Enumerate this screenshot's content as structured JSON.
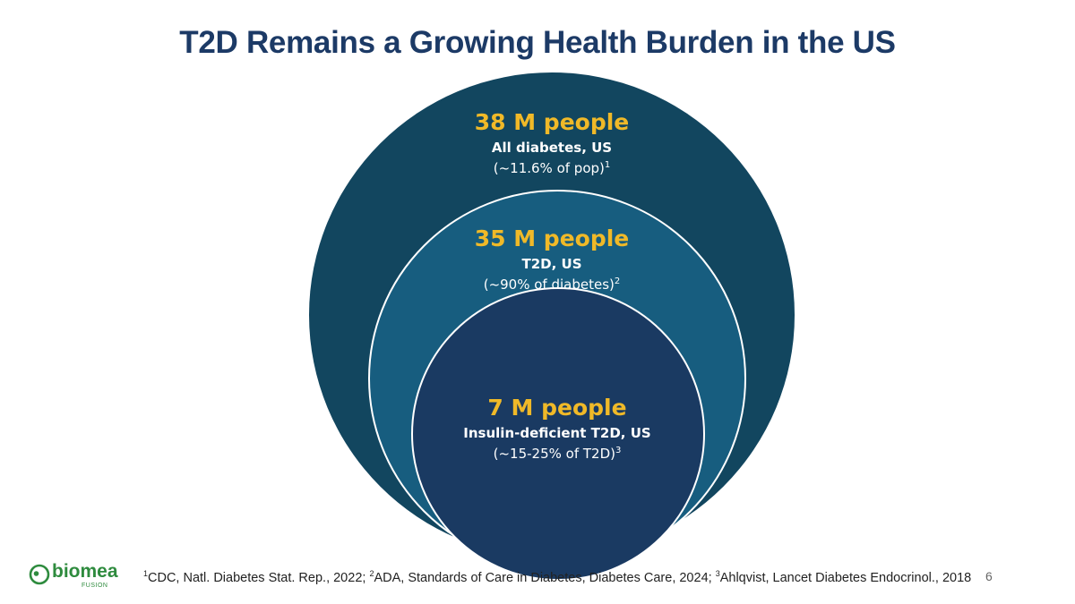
{
  "slide": {
    "title": "T2D Remains a Growing Health Burden in the US",
    "page_number": "6"
  },
  "colors": {
    "title": "#1c3a66",
    "outer_circle": "#12465f",
    "middle_circle": "#175d7f",
    "inner_circle": "#1a3a62",
    "highlight": "#f0b928",
    "brand_green": "#2e8b3e"
  },
  "diagram": {
    "outer": {
      "value": "38 M people",
      "label": "All diabetes, US",
      "note": "(~11.6% of pop)",
      "ref": "1"
    },
    "middle": {
      "value": "35 M people",
      "label": "T2D, US",
      "note": "(~90% of diabetes)",
      "ref": "2"
    },
    "inner": {
      "value": "7 M people",
      "label": "Insulin-deficient T2D, US",
      "note": "(~15-25% of T2D)",
      "ref": "3"
    }
  },
  "footer": {
    "ref1_num": "1",
    "ref1_text": "CDC, Natl. Diabetes Stat. Rep., 2022; ",
    "ref2_num": "2",
    "ref2_text": "ADA, Standards of Care in Diabetes, Diabetes Care, 2024; ",
    "ref3_num": "3",
    "ref3_text": "Ahlqvist, Lancet Diabetes Endocrinol., 2018"
  },
  "logo": {
    "name": "biomea",
    "tagline": "FUSION"
  }
}
